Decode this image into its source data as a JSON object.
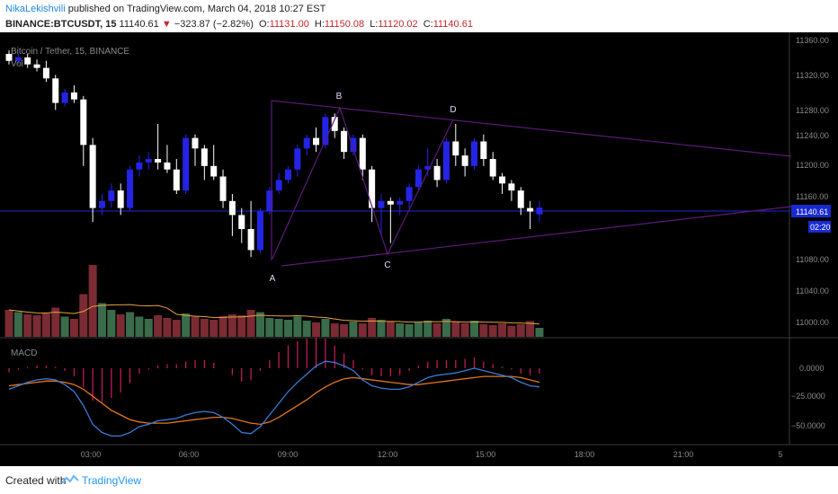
{
  "header": {
    "author": "NikaLekishvili",
    "published": "published on TradingView.com, March 04, 2018 10:27 EST",
    "symbol": "BINANCE:BTCUSDT, 15",
    "last": "11140.61",
    "change": "−32 3.87 (−2.82%)",
    "change_text": "−323.87 (−2.82%)",
    "o_label": "O:",
    "o": "11131.00",
    "h_label": "H:",
    "h": "11150.08",
    "l_label": "L:",
    "l": "11120.02",
    "c_label": "C:",
    "c": "11140.61"
  },
  "legend": {
    "series": "Bitcoin / Tether, 15, BINANCE",
    "vol": "Vol",
    "macd": "MACD"
  },
  "price_axis": {
    "ticks": [
      "11360.00",
      "11320.00",
      "11280.00",
      "11240.00",
      "11200.00",
      "11160.00",
      "11080.00",
      "11040.00",
      "11000.00"
    ],
    "last_badge": "11140.61",
    "countdown": "02:20"
  },
  "macd_axis": {
    "ticks": [
      "0.0000",
      "−25.0000",
      "−50.0000"
    ]
  },
  "time_axis": {
    "ticks": [
      "03:00",
      "06:00",
      "09:00",
      "12:00",
      "15:00",
      "18:00",
      "21:00",
      "5"
    ]
  },
  "pattern_labels": [
    "A",
    "B",
    "C",
    "D"
  ],
  "footer": {
    "created": "Created with",
    "brand": "TradingView"
  },
  "colors": {
    "up": "#2424e6",
    "down": "#ffffff",
    "pattern": "#5c1a7a",
    "macd_line": "#3a7bd5",
    "signal_line": "#e8751a",
    "hist": "#c2185b",
    "vol_up": "#3a6b4a",
    "vol_down": "#7a2b33"
  },
  "chart_data": {
    "type": "candlestick",
    "ylim": [
      11060,
      11370
    ],
    "candles": [
      [
        11360,
        11365,
        11345,
        11350
      ],
      [
        11350,
        11360,
        11345,
        11355
      ],
      [
        11355,
        11360,
        11340,
        11345
      ],
      [
        11345,
        11352,
        11335,
        11340
      ],
      [
        11340,
        11350,
        11320,
        11325
      ],
      [
        11325,
        11330,
        11280,
        11290
      ],
      [
        11290,
        11310,
        11285,
        11305
      ],
      [
        11305,
        11315,
        11290,
        11295
      ],
      [
        11295,
        11300,
        11200,
        11230
      ],
      [
        11230,
        11240,
        11120,
        11140
      ],
      [
        11140,
        11160,
        11130,
        11150
      ],
      [
        11150,
        11175,
        11140,
        11165
      ],
      [
        11165,
        11175,
        11130,
        11140
      ],
      [
        11140,
        11200,
        11135,
        11195
      ],
      [
        11195,
        11215,
        11185,
        11205
      ],
      [
        11205,
        11220,
        11195,
        11210
      ],
      [
        11210,
        11260,
        11195,
        11205
      ],
      [
        11205,
        11230,
        11190,
        11195
      ],
      [
        11195,
        11210,
        11160,
        11165
      ],
      [
        11165,
        11245,
        11160,
        11240
      ],
      [
        11240,
        11245,
        11200,
        11225
      ],
      [
        11225,
        11230,
        11180,
        11200
      ],
      [
        11200,
        11230,
        11180,
        11185
      ],
      [
        11185,
        11195,
        11140,
        11150
      ],
      [
        11150,
        11160,
        11100,
        11130
      ],
      [
        11130,
        11140,
        11090,
        11110
      ],
      [
        11110,
        11150,
        11070,
        11080
      ],
      [
        11080,
        11140,
        11075,
        11135
      ],
      [
        11135,
        11170,
        11130,
        11165
      ],
      [
        11165,
        11190,
        11160,
        11180
      ],
      [
        11180,
        11200,
        11175,
        11195
      ],
      [
        11195,
        11230,
        11185,
        11225
      ],
      [
        11225,
        11245,
        11215,
        11240
      ],
      [
        11240,
        11255,
        11220,
        11230
      ],
      [
        11230,
        11275,
        11225,
        11270
      ],
      [
        11270,
        11275,
        11240,
        11250
      ],
      [
        11250,
        11255,
        11210,
        11220
      ],
      [
        11220,
        11245,
        11215,
        11240
      ],
      [
        11240,
        11245,
        11180,
        11195
      ],
      [
        11195,
        11200,
        11120,
        11140
      ],
      [
        11140,
        11160,
        11100,
        11150
      ],
      [
        11150,
        11155,
        11090,
        11145
      ],
      [
        11145,
        11155,
        11130,
        11150
      ],
      [
        11150,
        11175,
        11140,
        11170
      ],
      [
        11170,
        11200,
        11165,
        11195
      ],
      [
        11195,
        11225,
        11185,
        11200
      ],
      [
        11200,
        11210,
        11170,
        11180
      ],
      [
        11180,
        11240,
        11175,
        11235
      ],
      [
        11235,
        11260,
        11200,
        11215
      ],
      [
        11215,
        11225,
        11185,
        11200
      ],
      [
        11200,
        11240,
        11195,
        11235
      ],
      [
        11235,
        11245,
        11200,
        11210
      ],
      [
        11210,
        11220,
        11180,
        11185
      ],
      [
        11185,
        11190,
        11160,
        11175
      ],
      [
        11175,
        11180,
        11150,
        11165
      ],
      [
        11165,
        11170,
        11130,
        11140
      ],
      [
        11140,
        11150,
        11110,
        11135
      ],
      [
        11131,
        11150,
        11120,
        11140.61
      ]
    ],
    "volume": [
      60,
      55,
      50,
      48,
      52,
      65,
      45,
      40,
      95,
      160,
      75,
      60,
      50,
      55,
      45,
      40,
      48,
      42,
      38,
      52,
      45,
      40,
      38,
      46,
      50,
      48,
      60,
      55,
      42,
      40,
      38,
      45,
      36,
      32,
      40,
      30,
      28,
      34,
      30,
      42,
      38,
      35,
      30,
      28,
      32,
      36,
      30,
      40,
      34,
      30,
      36,
      28,
      26,
      30,
      24,
      28,
      35,
      20
    ],
    "macd": [
      -18,
      -15,
      -12,
      -10,
      -9,
      -10,
      -14,
      -20,
      -32,
      -48,
      -55,
      -58,
      -58,
      -55,
      -50,
      -48,
      -45,
      -44,
      -43,
      -40,
      -38,
      -37,
      -38,
      -42,
      -48,
      -55,
      -56,
      -50,
      -40,
      -30,
      -20,
      -12,
      -5,
      2,
      6,
      5,
      2,
      -2,
      -10,
      -15,
      -17,
      -18,
      -18,
      -16,
      -12,
      -8,
      -6,
      -5,
      -4,
      -2,
      0,
      -2,
      -4,
      -6,
      -8,
      -12,
      -15,
      -16
    ],
    "signal": [
      -15,
      -14,
      -13,
      -12,
      -11,
      -11,
      -12,
      -14,
      -18,
      -24,
      -30,
      -36,
      -40,
      -44,
      -46,
      -47,
      -47,
      -47,
      -46,
      -45,
      -44,
      -43,
      -42,
      -42,
      -43,
      -45,
      -47,
      -48,
      -46,
      -42,
      -37,
      -32,
      -27,
      -21,
      -16,
      -12,
      -9,
      -8,
      -9,
      -10,
      -11,
      -12,
      -13,
      -14,
      -14,
      -13,
      -12,
      -11,
      -10,
      -9,
      -8,
      -7,
      -7,
      -7,
      -7,
      -8,
      -10,
      -12
    ]
  }
}
